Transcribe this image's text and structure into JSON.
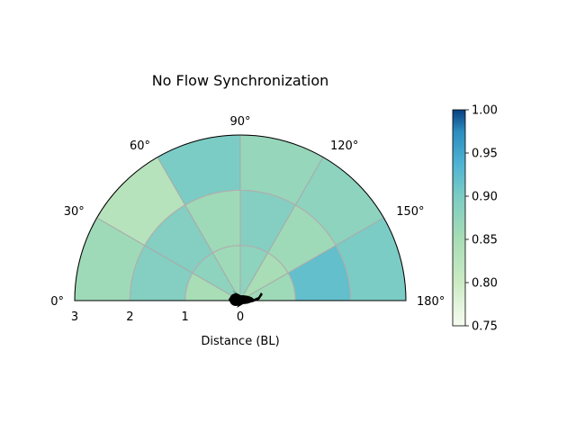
{
  "chart_data": {
    "type": "heatmap",
    "subtype": "polar-half",
    "title": "No Flow Synchronization",
    "xlabel": "Distance (BL)",
    "angle_ticks": [
      "0°",
      "30°",
      "60°",
      "90°",
      "120°",
      "150°",
      "180°"
    ],
    "radial_ticks": [
      "3",
      "2",
      "1",
      "0"
    ],
    "radial_edges": [
      0,
      1,
      2,
      3
    ],
    "angle_edges_deg": [
      0,
      30,
      60,
      90,
      120,
      150,
      180
    ],
    "values": [
      [
        0.85,
        0.88,
        0.86,
        0.88,
        0.85,
        0.86
      ],
      [
        0.89,
        0.89,
        0.86,
        0.89,
        0.86,
        0.92
      ],
      [
        0.86,
        0.83,
        0.9,
        0.87,
        0.88,
        0.9
      ]
    ],
    "colorbar": {
      "min": 0.75,
      "max": 1.0,
      "ticks": [
        "0.75",
        "0.80",
        "0.85",
        "0.90",
        "0.95",
        "1.00"
      ],
      "colormap": "GnBu"
    }
  }
}
